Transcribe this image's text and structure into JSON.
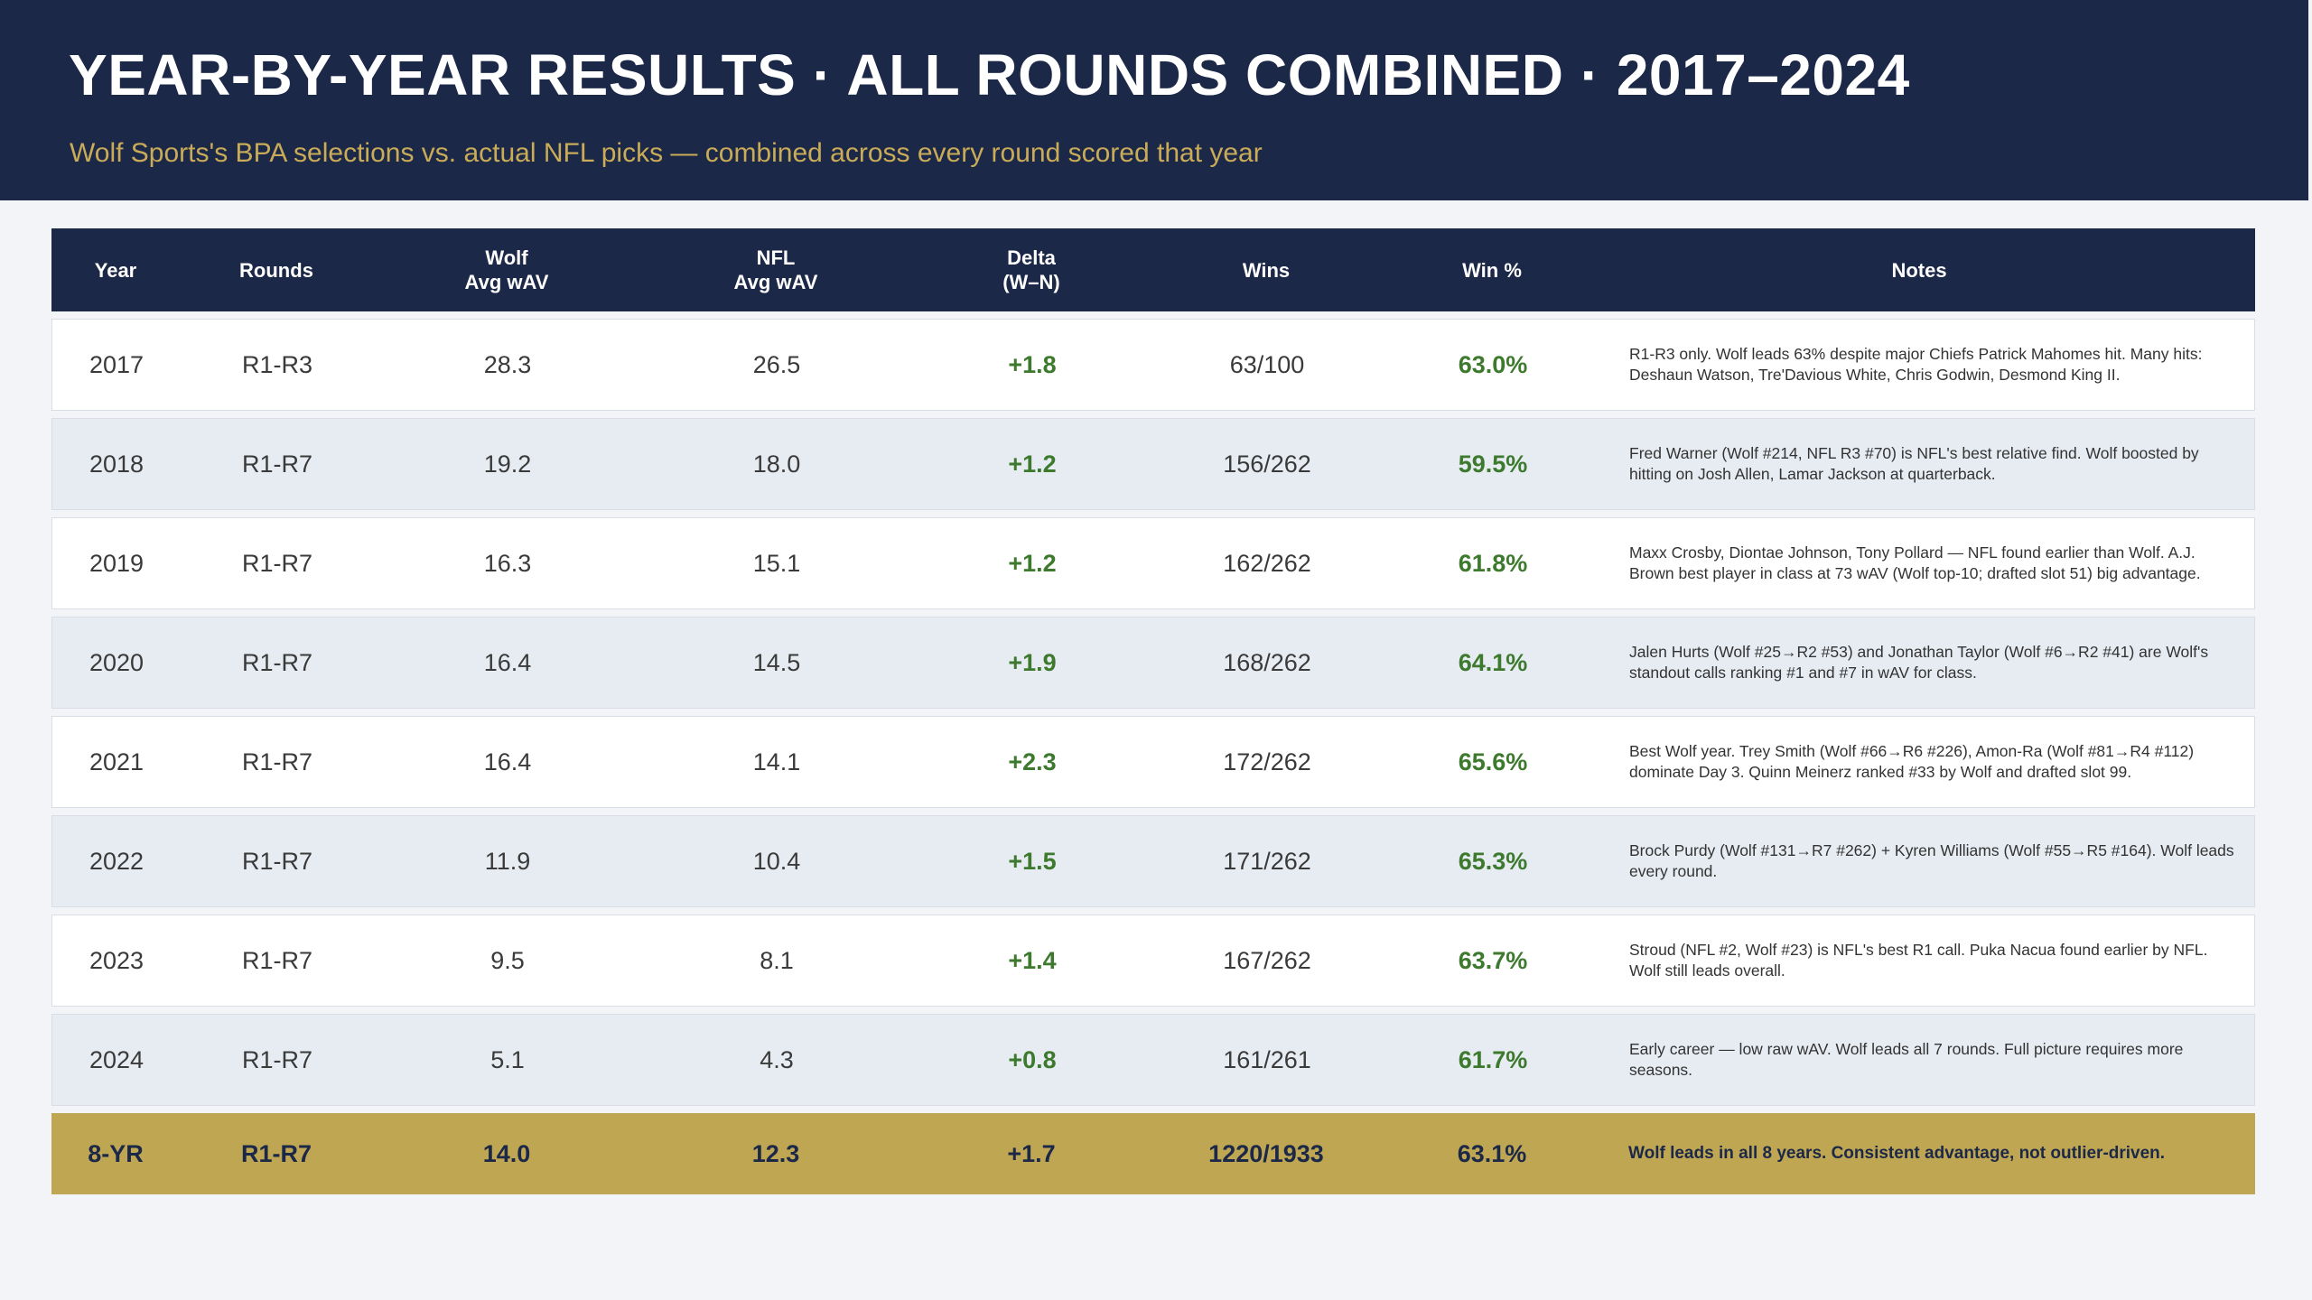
{
  "header": {
    "title": "YEAR-BY-YEAR RESULTS  ·  ALL ROUNDS COMBINED  ·  2017–2024",
    "subtitle": "Wolf Sports's BPA selections vs. actual NFL picks — combined across every round scored that year"
  },
  "table": {
    "columns": {
      "year": "Year",
      "rounds": "Rounds",
      "wolf_1": "Wolf",
      "wolf_2": "Avg wAV",
      "nfl_1": "NFL",
      "nfl_2": "Avg wAV",
      "delta_1": "Delta",
      "delta_2": "(W–N)",
      "wins": "Wins",
      "win_pct": "Win %",
      "notes": "Notes"
    },
    "rows": [
      {
        "year": "2017",
        "rounds": "R1-R3",
        "wolf": "28.3",
        "nfl": "26.5",
        "delta": "+1.8",
        "wins": "63/100",
        "win_pct": "63.0%",
        "notes": "R1-R3 only. Wolf leads 63% despite major Chiefs Patrick Mahomes hit. Many hits: Deshaun Watson, Tre'Davious White, Chris Godwin, Desmond King II."
      },
      {
        "year": "2018",
        "rounds": "R1-R7",
        "wolf": "19.2",
        "nfl": "18.0",
        "delta": "+1.2",
        "wins": "156/262",
        "win_pct": "59.5%",
        "notes": "Fred Warner (Wolf #214, NFL R3 #70) is NFL's best relative find. Wolf boosted by hitting on Josh Allen, Lamar Jackson at quarterback."
      },
      {
        "year": "2019",
        "rounds": "R1-R7",
        "wolf": "16.3",
        "nfl": "15.1",
        "delta": "+1.2",
        "wins": "162/262",
        "win_pct": "61.8%",
        "notes": "Maxx Crosby, Diontae Johnson, Tony Pollard — NFL found earlier than Wolf. A.J. Brown best player in class at 73 wAV (Wolf top-10; drafted slot 51) big advantage."
      },
      {
        "year": "2020",
        "rounds": "R1-R7",
        "wolf": "16.4",
        "nfl": "14.5",
        "delta": "+1.9",
        "wins": "168/262",
        "win_pct": "64.1%",
        "notes": "Jalen Hurts (Wolf #25→R2 #53) and Jonathan Taylor (Wolf #6→R2 #41) are Wolf's standout calls ranking #1 and #7 in wAV for class."
      },
      {
        "year": "2021",
        "rounds": "R1-R7",
        "wolf": "16.4",
        "nfl": "14.1",
        "delta": "+2.3",
        "wins": "172/262",
        "win_pct": "65.6%",
        "notes": "Best Wolf year. Trey Smith (Wolf #66→R6 #226), Amon-Ra (Wolf #81→R4 #112) dominate Day 3. Quinn Meinerz ranked #33 by Wolf and drafted slot 99."
      },
      {
        "year": "2022",
        "rounds": "R1-R7",
        "wolf": "11.9",
        "nfl": "10.4",
        "delta": "+1.5",
        "wins": "171/262",
        "win_pct": "65.3%",
        "notes": "Brock Purdy (Wolf #131→R7 #262) + Kyren Williams (Wolf #55→R5 #164). Wolf leads every round."
      },
      {
        "year": "2023",
        "rounds": "R1-R7",
        "wolf": "9.5",
        "nfl": "8.1",
        "delta": "+1.4",
        "wins": "167/262",
        "win_pct": "63.7%",
        "notes": "Stroud (NFL #2, Wolf #23) is NFL's best R1 call. Puka Nacua found earlier by NFL. Wolf still leads overall."
      },
      {
        "year": "2024",
        "rounds": "R1-R7",
        "wolf": "5.1",
        "nfl": "4.3",
        "delta": "+0.8",
        "wins": "161/261",
        "win_pct": "61.7%",
        "notes": "Early career — low raw wAV. Wolf leads all 7 rounds. Full picture requires more seasons."
      }
    ],
    "total": {
      "year": "8-YR",
      "rounds": "R1-R7",
      "wolf": "14.0",
      "nfl": "12.3",
      "delta": "+1.7",
      "wins": "1220/1933",
      "win_pct": "63.1%",
      "notes": "Wolf leads in all 8 years. Consistent advantage, not outlier-driven."
    }
  },
  "colors": {
    "navy": "#1c2847",
    "gold": "#bfa653",
    "positive_green": "#3d7a2e",
    "subtitle_gold": "#c9ab58"
  }
}
